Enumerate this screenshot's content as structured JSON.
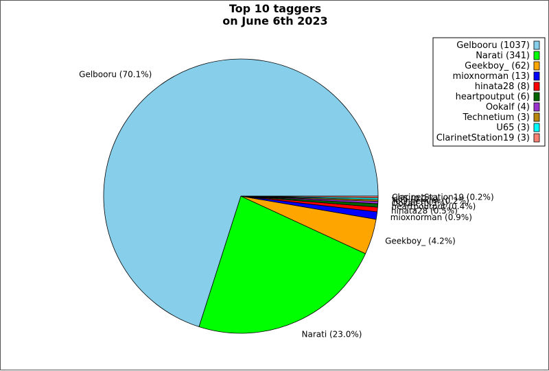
{
  "chart_data": {
    "type": "pie",
    "title": [
      "Top 10 taggers",
      "on June 6th 2023"
    ],
    "legend_position": "top-right",
    "slices": [
      {
        "label": "Gelbooru (70.1%)",
        "legend": "Gelbooru (1037)",
        "value": 1037,
        "color": "#87ceeb"
      },
      {
        "label": "Narati (23.0%)",
        "legend": "Narati (341)",
        "value": 341,
        "color": "#00ff00"
      },
      {
        "label": "Geekboy_ (4.2%)",
        "legend": "Geekboy_ (62)",
        "value": 62,
        "color": "#ffa500"
      },
      {
        "label": "mioxnorman (0.9%)",
        "legend": "mioxnorman (13)",
        "value": 13,
        "color": "#0000ff"
      },
      {
        "label": "hinata28 (0.5%)",
        "legend": "hinata28 (8)",
        "value": 8,
        "color": "#ff0000"
      },
      {
        "label": "heartpoutput (0.4%)",
        "legend": "heartpoutput (6)",
        "value": 6,
        "color": "#006400"
      },
      {
        "label": "Ookalf (0.3%)",
        "legend": "Ookalf (4)",
        "value": 4,
        "color": "#9932cc"
      },
      {
        "label": "Technetium (0.2%)",
        "legend": "Technetium (3)",
        "value": 3,
        "color": "#b8860b"
      },
      {
        "label": "U65 (0.2%)",
        "legend": "U65 (3)",
        "value": 3,
        "color": "#00ffff"
      },
      {
        "label": "ClarinetStation19 (0.2%)",
        "legend": "ClarinetStation19 (3)",
        "value": 3,
        "color": "#fa8072"
      }
    ]
  }
}
